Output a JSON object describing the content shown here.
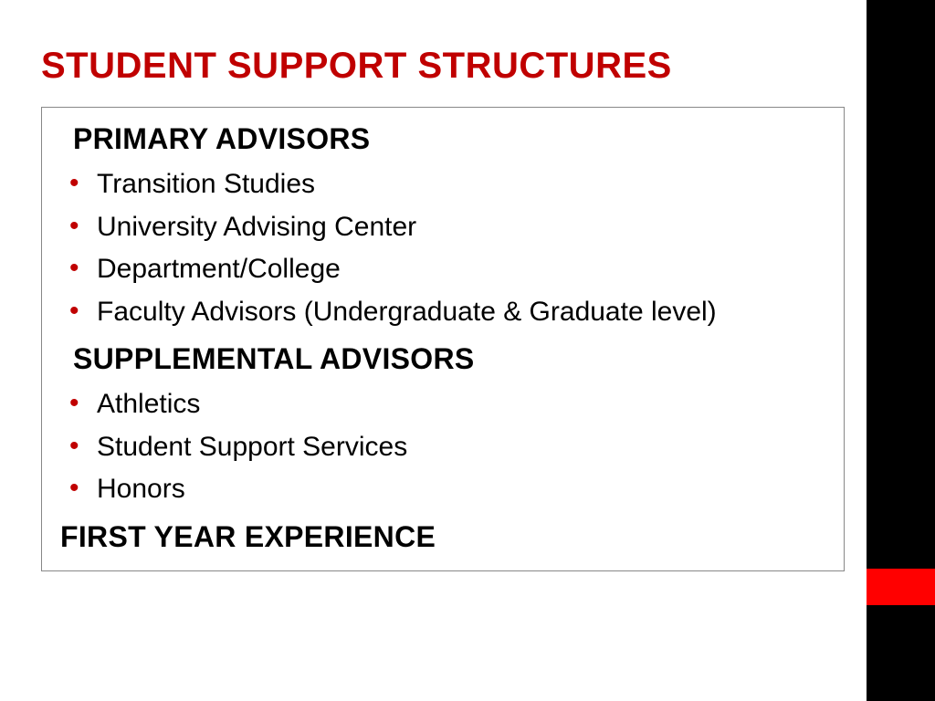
{
  "slide": {
    "title": "STUDENT SUPPORT STRUCTURES",
    "title_color": "#c00000",
    "background_color": "#ffffff",
    "sidebar_color": "#000000",
    "accent_color": "#ff0000"
  },
  "sections": {
    "primary": {
      "heading": "PRIMARY ADVISORS",
      "items": [
        "Transition Studies",
        "University Advising Center",
        "Department/College",
        "Faculty Advisors (Undergraduate & Graduate level)"
      ]
    },
    "supplemental": {
      "heading": "SUPPLEMENTAL ADVISORS",
      "items": [
        "Athletics",
        "Student Support Services",
        "Honors"
      ]
    },
    "final": {
      "heading": "FIRST YEAR EXPERIENCE"
    }
  },
  "styling": {
    "bullet_color": "#c00000",
    "heading_fontsize": 32,
    "title_fontsize": 40,
    "body_fontsize": 30,
    "border_color": "#888888"
  }
}
